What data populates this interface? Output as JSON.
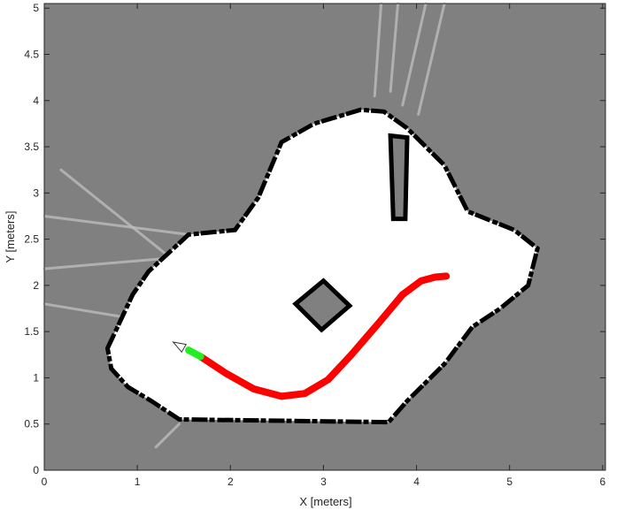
{
  "chart_data": {
    "type": "occupancy-map",
    "title": "",
    "xlabel": "X [meters]",
    "ylabel": "Y [meters]",
    "xlim": [
      0,
      6.03
    ],
    "ylim": [
      0,
      5.05
    ],
    "xticks": [
      0,
      1,
      2,
      3,
      4,
      5,
      6
    ],
    "yticks": [
      0,
      0.5,
      1,
      1.5,
      2,
      2.5,
      3,
      3.5,
      4,
      4.5,
      5
    ],
    "ytick_labels": [
      "0",
      "0.5",
      "1",
      "1.5",
      "2",
      "2.5",
      "3",
      "3.5",
      "4",
      "4.5",
      "5"
    ],
    "grid": false,
    "colors": {
      "unknown": "#808080",
      "free": "#ffffff",
      "occupied": "#000000",
      "traversed_path": "#ff0000",
      "current_segment": "#22ee22",
      "scan_rays": "#c0c0c0"
    },
    "map": {
      "free_space_outline": [
        [
          0.68,
          1.32
        ],
        [
          0.95,
          1.9
        ],
        [
          1.12,
          2.15
        ],
        [
          1.55,
          2.55
        ],
        [
          2.05,
          2.6
        ],
        [
          2.3,
          2.95
        ],
        [
          2.55,
          3.55
        ],
        [
          2.9,
          3.75
        ],
        [
          3.4,
          3.9
        ],
        [
          3.65,
          3.88
        ],
        [
          3.9,
          3.7
        ],
        [
          4.3,
          3.3
        ],
        [
          4.55,
          2.8
        ],
        [
          5.05,
          2.6
        ],
        [
          5.3,
          2.4
        ],
        [
          5.2,
          2.0
        ],
        [
          4.9,
          1.75
        ],
        [
          4.6,
          1.55
        ],
        [
          4.3,
          1.15
        ],
        [
          3.9,
          0.75
        ],
        [
          3.7,
          0.52
        ],
        [
          1.45,
          0.55
        ],
        [
          1.15,
          0.75
        ],
        [
          0.9,
          0.9
        ],
        [
          0.72,
          1.1
        ]
      ],
      "obstacles": [
        {
          "name": "square-obstacle",
          "outline": [
            [
              3.0,
              2.05
            ],
            [
              2.7,
              1.8
            ],
            [
              2.98,
              1.52
            ],
            [
              3.28,
              1.78
            ]
          ]
        },
        {
          "name": "pillar-obstacle",
          "outline": [
            [
              3.72,
              3.62
            ],
            [
              3.9,
              3.6
            ],
            [
              3.88,
              2.72
            ],
            [
              3.75,
              2.72
            ]
          ]
        }
      ],
      "scan_rays": [
        [
          [
            0.18,
            3.25
          ],
          [
            1.38,
            2.28
          ]
        ],
        [
          [
            0.0,
            2.75
          ],
          [
            1.55,
            2.55
          ]
        ],
        [
          [
            0.0,
            2.18
          ],
          [
            1.4,
            2.3
          ]
        ],
        [
          [
            0.0,
            1.8
          ],
          [
            0.9,
            1.65
          ]
        ],
        [
          [
            3.55,
            4.05
          ],
          [
            3.62,
            5.05
          ]
        ],
        [
          [
            3.72,
            4.1
          ],
          [
            3.8,
            5.05
          ]
        ],
        [
          [
            3.85,
            3.95
          ],
          [
            4.1,
            5.05
          ]
        ],
        [
          [
            4.02,
            3.85
          ],
          [
            4.3,
            5.05
          ]
        ],
        [
          [
            1.2,
            0.25
          ],
          [
            1.45,
            0.5
          ]
        ]
      ]
    },
    "series": [
      {
        "role": "traversed_path",
        "x": [
          1.68,
          1.95,
          2.25,
          2.55,
          2.8,
          3.05,
          3.3,
          3.6,
          3.85,
          4.05,
          4.2,
          4.32
        ],
        "y": [
          1.23,
          1.05,
          0.88,
          0.8,
          0.83,
          0.98,
          1.25,
          1.6,
          1.9,
          2.05,
          2.09,
          2.1
        ]
      },
      {
        "role": "current_segment",
        "x": [
          1.55,
          1.68
        ],
        "y": [
          1.3,
          1.23
        ]
      }
    ],
    "robot": {
      "x": 1.5,
      "y": 1.32,
      "heading_deg": 150
    }
  }
}
